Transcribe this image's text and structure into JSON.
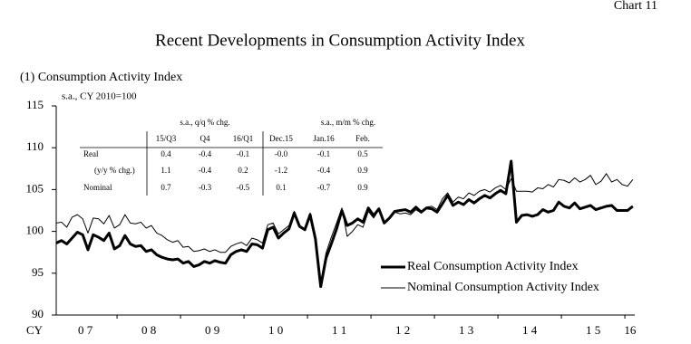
{
  "chart_data": {
    "type": "line",
    "corner_label": "Chart 11",
    "title": "Recent Developments in Consumption Activity Index",
    "subtitle": "(1) Consumption Activity Index",
    "y_note": "s.a., CY 2010=100",
    "x_label": "CY",
    "year_labels": [
      "0 7",
      "0 8",
      "0 9",
      "1 0",
      "1 1",
      "1 2",
      "1 3",
      "1 4",
      "1 5",
      "16"
    ],
    "ylim": [
      90,
      115
    ],
    "yticks": [
      90,
      95,
      100,
      105,
      110,
      115
    ],
    "legend": "lower right",
    "series": [
      {
        "name": "Real Consumption Activity Index",
        "color": "#000000",
        "width": 3,
        "values": [
          98.6,
          98.9,
          98.5,
          99.2,
          99.9,
          99.6,
          97.8,
          99.6,
          99.3,
          98.9,
          99.8,
          97.9,
          98.3,
          99.5,
          98.5,
          98.2,
          98.3,
          97.6,
          97.8,
          97.2,
          96.9,
          96.7,
          96.6,
          96.7,
          96.2,
          96.4,
          95.8,
          96.0,
          96.4,
          96.2,
          96.5,
          96.3,
          96.2,
          97.2,
          97.6,
          97.8,
          97.6,
          98.5,
          98.4,
          98.0,
          100.2,
          100.5,
          99.2,
          99.8,
          100.3,
          102.2,
          100.6,
          100.2,
          102.0,
          99.1,
          93.4,
          96.8,
          98.5,
          100.3,
          102.5,
          100.7,
          101.0,
          101.5,
          101.1,
          102.8,
          101.9,
          102.7,
          101.0,
          101.6,
          102.4,
          102.5,
          102.6,
          102.3,
          102.9,
          102.3,
          102.8,
          102.7,
          102.3,
          103.3,
          104.3,
          103.1,
          103.5,
          103.2,
          103.8,
          103.4,
          103.9,
          104.3,
          104.0,
          104.5,
          104.9,
          104.5,
          108.4,
          101.1,
          101.9,
          102.0,
          101.8,
          102.0,
          102.6,
          102.3,
          102.5,
          103.5,
          103.0,
          102.8,
          103.4,
          102.7,
          102.9,
          103.1,
          102.6,
          102.8,
          103.0,
          103.1,
          102.5,
          102.5,
          102.5,
          103.0
        ]
      },
      {
        "name": "Nominal Consumption Activity Index",
        "color": "#000000",
        "width": 1,
        "values": [
          101.0,
          101.1,
          100.5,
          101.7,
          102.0,
          101.5,
          99.8,
          101.6,
          101.5,
          100.9,
          101.9,
          100.4,
          100.8,
          102.0,
          101.0,
          100.9,
          101.1,
          100.4,
          100.7,
          99.8,
          99.5,
          99.0,
          98.7,
          98.9,
          98.1,
          98.2,
          97.6,
          97.7,
          97.9,
          97.6,
          97.8,
          97.5,
          97.5,
          98.2,
          98.5,
          98.7,
          98.3,
          99.2,
          99.0,
          98.6,
          100.8,
          101.0,
          99.7,
          100.2,
          100.7,
          102.4,
          100.6,
          100.3,
          102.2,
          99.6,
          93.9,
          97.4,
          99.3,
          101.0,
          102.8,
          99.4,
          100.0,
          100.8,
          100.5,
          102.4,
          101.6,
          102.6,
          101.0,
          101.5,
          102.3,
          102.1,
          102.2,
          102.0,
          102.6,
          102.2,
          102.9,
          103.0,
          102.6,
          103.9,
          104.6,
          103.5,
          104.1,
          103.9,
          104.6,
          104.3,
          104.8,
          105.0,
          104.7,
          105.2,
          105.5,
          105.0,
          106.3,
          104.8,
          104.8,
          104.8,
          104.7,
          105.2,
          105.1,
          105.6,
          105.3,
          106.2,
          106.1,
          105.8,
          106.4,
          105.9,
          106.2,
          106.7,
          105.6,
          106.0,
          106.9,
          105.9,
          106.2,
          105.6,
          105.4,
          106.2
        ]
      }
    ],
    "table": {
      "group_headers": [
        "s.a., q/q % chg.",
        "s.a., m/m % chg."
      ],
      "columns": [
        "15/Q3",
        "Q4",
        "16/Q1",
        "Dec.15",
        "Jan.16",
        "Feb."
      ],
      "rows": [
        {
          "label": "Real",
          "cells": [
            "0.4",
            "-0.4",
            "-0.1",
            "-0.0",
            "-0.1",
            "0.5"
          ]
        },
        {
          "label": "(y/y % chg.)",
          "cells": [
            "1.1",
            "-0.4",
            "0.2",
            "-1.2",
            "-0.4",
            "0.9"
          ]
        },
        {
          "label": "Nominal",
          "cells": [
            "0.7",
            "-0.3",
            "-0.5",
            "0.1",
            "-0.7",
            "0.9"
          ]
        }
      ]
    }
  }
}
